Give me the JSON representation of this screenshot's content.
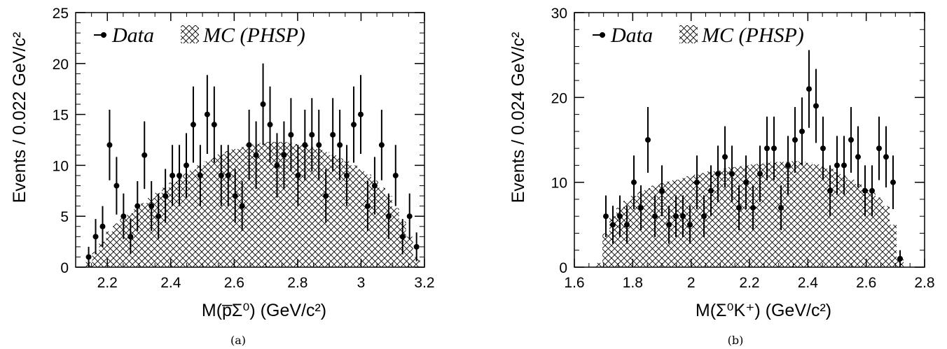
{
  "chart_data": [
    {
      "type": "scatter",
      "panel_label": "(a)",
      "xlabel": "M(p̅Σ⁰) (GeV/c²)",
      "ylabel": "Events / 0.022 GeV/c²",
      "xlim": [
        2.1,
        3.2
      ],
      "ylim": [
        0,
        25
      ],
      "x_ticks": [
        2.2,
        2.4,
        2.6,
        2.8,
        3.0,
        3.2
      ],
      "x_tick_labels": [
        "2.2",
        "2.4",
        "2.6",
        "2.8",
        "3",
        "3.2"
      ],
      "y_ticks": [
        0,
        5,
        10,
        15,
        20,
        25
      ],
      "y_tick_labels": [
        "0",
        "5",
        "10",
        "15",
        "20",
        "25"
      ],
      "grid": false,
      "legend_position": "top-left",
      "legend": [
        {
          "label": "Data",
          "style": "marker"
        },
        {
          "label": "MC (PHSP)",
          "style": "hatch"
        }
      ],
      "series": [
        {
          "name": "Data",
          "kind": "points-with-errors",
          "x": [
            2.141,
            2.163,
            2.185,
            2.207,
            2.229,
            2.251,
            2.273,
            2.295,
            2.317,
            2.339,
            2.361,
            2.383,
            2.405,
            2.427,
            2.449,
            2.471,
            2.493,
            2.515,
            2.537,
            2.559,
            2.581,
            2.603,
            2.625,
            2.647,
            2.669,
            2.691,
            2.713,
            2.735,
            2.757,
            2.779,
            2.801,
            2.823,
            2.845,
            2.867,
            2.889,
            2.911,
            2.933,
            2.955,
            2.977,
            2.999,
            3.021,
            3.043,
            3.065,
            3.087,
            3.109,
            3.131,
            3.153,
            3.175
          ],
          "y": [
            1,
            3,
            4,
            12,
            8,
            5,
            3,
            6,
            11,
            6,
            5,
            7,
            9,
            9,
            10,
            14,
            9,
            15,
            14,
            9,
            9,
            7,
            6,
            12,
            11,
            16,
            14,
            10,
            11,
            13,
            9,
            12,
            13,
            12,
            7,
            13,
            12,
            9,
            14,
            15,
            6,
            8,
            12,
            5,
            9,
            3,
            5,
            2
          ]
        },
        {
          "name": "MC (PHSP)",
          "kind": "hatched-histogram",
          "bin_width": 0.022,
          "x": [
            2.141,
            2.163,
            2.185,
            2.207,
            2.229,
            2.251,
            2.273,
            2.295,
            2.317,
            2.339,
            2.361,
            2.383,
            2.405,
            2.427,
            2.449,
            2.471,
            2.493,
            2.515,
            2.537,
            2.559,
            2.581,
            2.603,
            2.625,
            2.647,
            2.669,
            2.691,
            2.713,
            2.735,
            2.757,
            2.779,
            2.801,
            2.823,
            2.845,
            2.867,
            2.889,
            2.911,
            2.933,
            2.955,
            2.977,
            2.999,
            3.021,
            3.043,
            3.065,
            3.087,
            3.109,
            3.131,
            3.153,
            3.175
          ],
          "y": [
            0.5,
            1.5,
            2.5,
            3.5,
            4.3,
            4.8,
            5.3,
            5.8,
            6.3,
            6.8,
            7.3,
            7.8,
            8.3,
            8.8,
            9.2,
            9.6,
            10.0,
            10.4,
            10.8,
            11.1,
            11.4,
            11.6,
            11.8,
            12.0,
            12.1,
            12.2,
            12.3,
            12.3,
            12.3,
            12.2,
            12.1,
            12.0,
            11.8,
            11.6,
            11.3,
            11.0,
            10.7,
            10.4,
            10.0,
            9.6,
            9.1,
            8.5,
            7.8,
            7.0,
            5.8,
            4.5,
            3.0,
            1.0
          ]
        }
      ]
    },
    {
      "type": "scatter",
      "panel_label": "(b)",
      "xlabel": "M(Σ⁰K⁺) (GeV/c²)",
      "ylabel": "Events / 0.024 GeV/c²",
      "xlim": [
        1.6,
        2.8
      ],
      "ylim": [
        0,
        30
      ],
      "x_ticks": [
        1.6,
        1.8,
        2.0,
        2.2,
        2.4,
        2.6,
        2.8
      ],
      "x_tick_labels": [
        "1.6",
        "1.8",
        "2",
        "2.2",
        "2.4",
        "2.6",
        "2.8"
      ],
      "y_ticks": [
        0,
        10,
        20,
        30
      ],
      "y_tick_labels": [
        "0",
        "10",
        "20",
        "30"
      ],
      "grid": false,
      "legend_position": "top-left",
      "legend": [
        {
          "label": "Data",
          "style": "marker"
        },
        {
          "label": "MC (PHSP)",
          "style": "hatch"
        }
      ],
      "series": [
        {
          "name": "Data",
          "kind": "points-with-errors",
          "x": [
            1.708,
            1.732,
            1.756,
            1.78,
            1.804,
            1.828,
            1.852,
            1.876,
            1.9,
            1.924,
            1.948,
            1.972,
            1.996,
            2.02,
            2.044,
            2.068,
            2.092,
            2.116,
            2.14,
            2.164,
            2.188,
            2.212,
            2.236,
            2.26,
            2.284,
            2.308,
            2.332,
            2.356,
            2.38,
            2.404,
            2.428,
            2.452,
            2.476,
            2.5,
            2.524,
            2.548,
            2.572,
            2.596,
            2.62,
            2.644,
            2.668,
            2.692,
            2.716
          ],
          "y": [
            6,
            5,
            6,
            5,
            10,
            7,
            15,
            6,
            9,
            5,
            6,
            6,
            5,
            10,
            6,
            9,
            11,
            13,
            11,
            7,
            10,
            7,
            11,
            14,
            14,
            7,
            12,
            15,
            16,
            21,
            19,
            14,
            9,
            12,
            12,
            15,
            13,
            9,
            9,
            14,
            13,
            10,
            1
          ]
        },
        {
          "name": "MC (PHSP)",
          "kind": "hatched-histogram",
          "bin_width": 0.024,
          "x": [
            1.684,
            1.708,
            1.732,
            1.756,
            1.78,
            1.804,
            1.828,
            1.852,
            1.876,
            1.9,
            1.924,
            1.948,
            1.972,
            1.996,
            2.02,
            2.044,
            2.068,
            2.092,
            2.116,
            2.14,
            2.164,
            2.188,
            2.212,
            2.236,
            2.26,
            2.284,
            2.308,
            2.332,
            2.356,
            2.38,
            2.404,
            2.428,
            2.452,
            2.476,
            2.5,
            2.524,
            2.548,
            2.572,
            2.596,
            2.62,
            2.644,
            2.668,
            2.692,
            2.716
          ],
          "y": [
            0.5,
            4.0,
            6.0,
            7.0,
            7.8,
            8.4,
            8.9,
            9.3,
            9.6,
            9.9,
            10.1,
            10.3,
            10.5,
            10.7,
            10.9,
            11.1,
            11.3,
            11.4,
            11.6,
            11.8,
            11.9,
            12.0,
            12.1,
            12.2,
            12.3,
            12.4,
            12.4,
            12.4,
            12.5,
            12.4,
            12.3,
            12.1,
            11.9,
            11.6,
            11.2,
            10.8,
            10.3,
            9.8,
            9.3,
            8.8,
            8.2,
            7.2,
            5.0,
            1.0
          ]
        }
      ]
    }
  ]
}
